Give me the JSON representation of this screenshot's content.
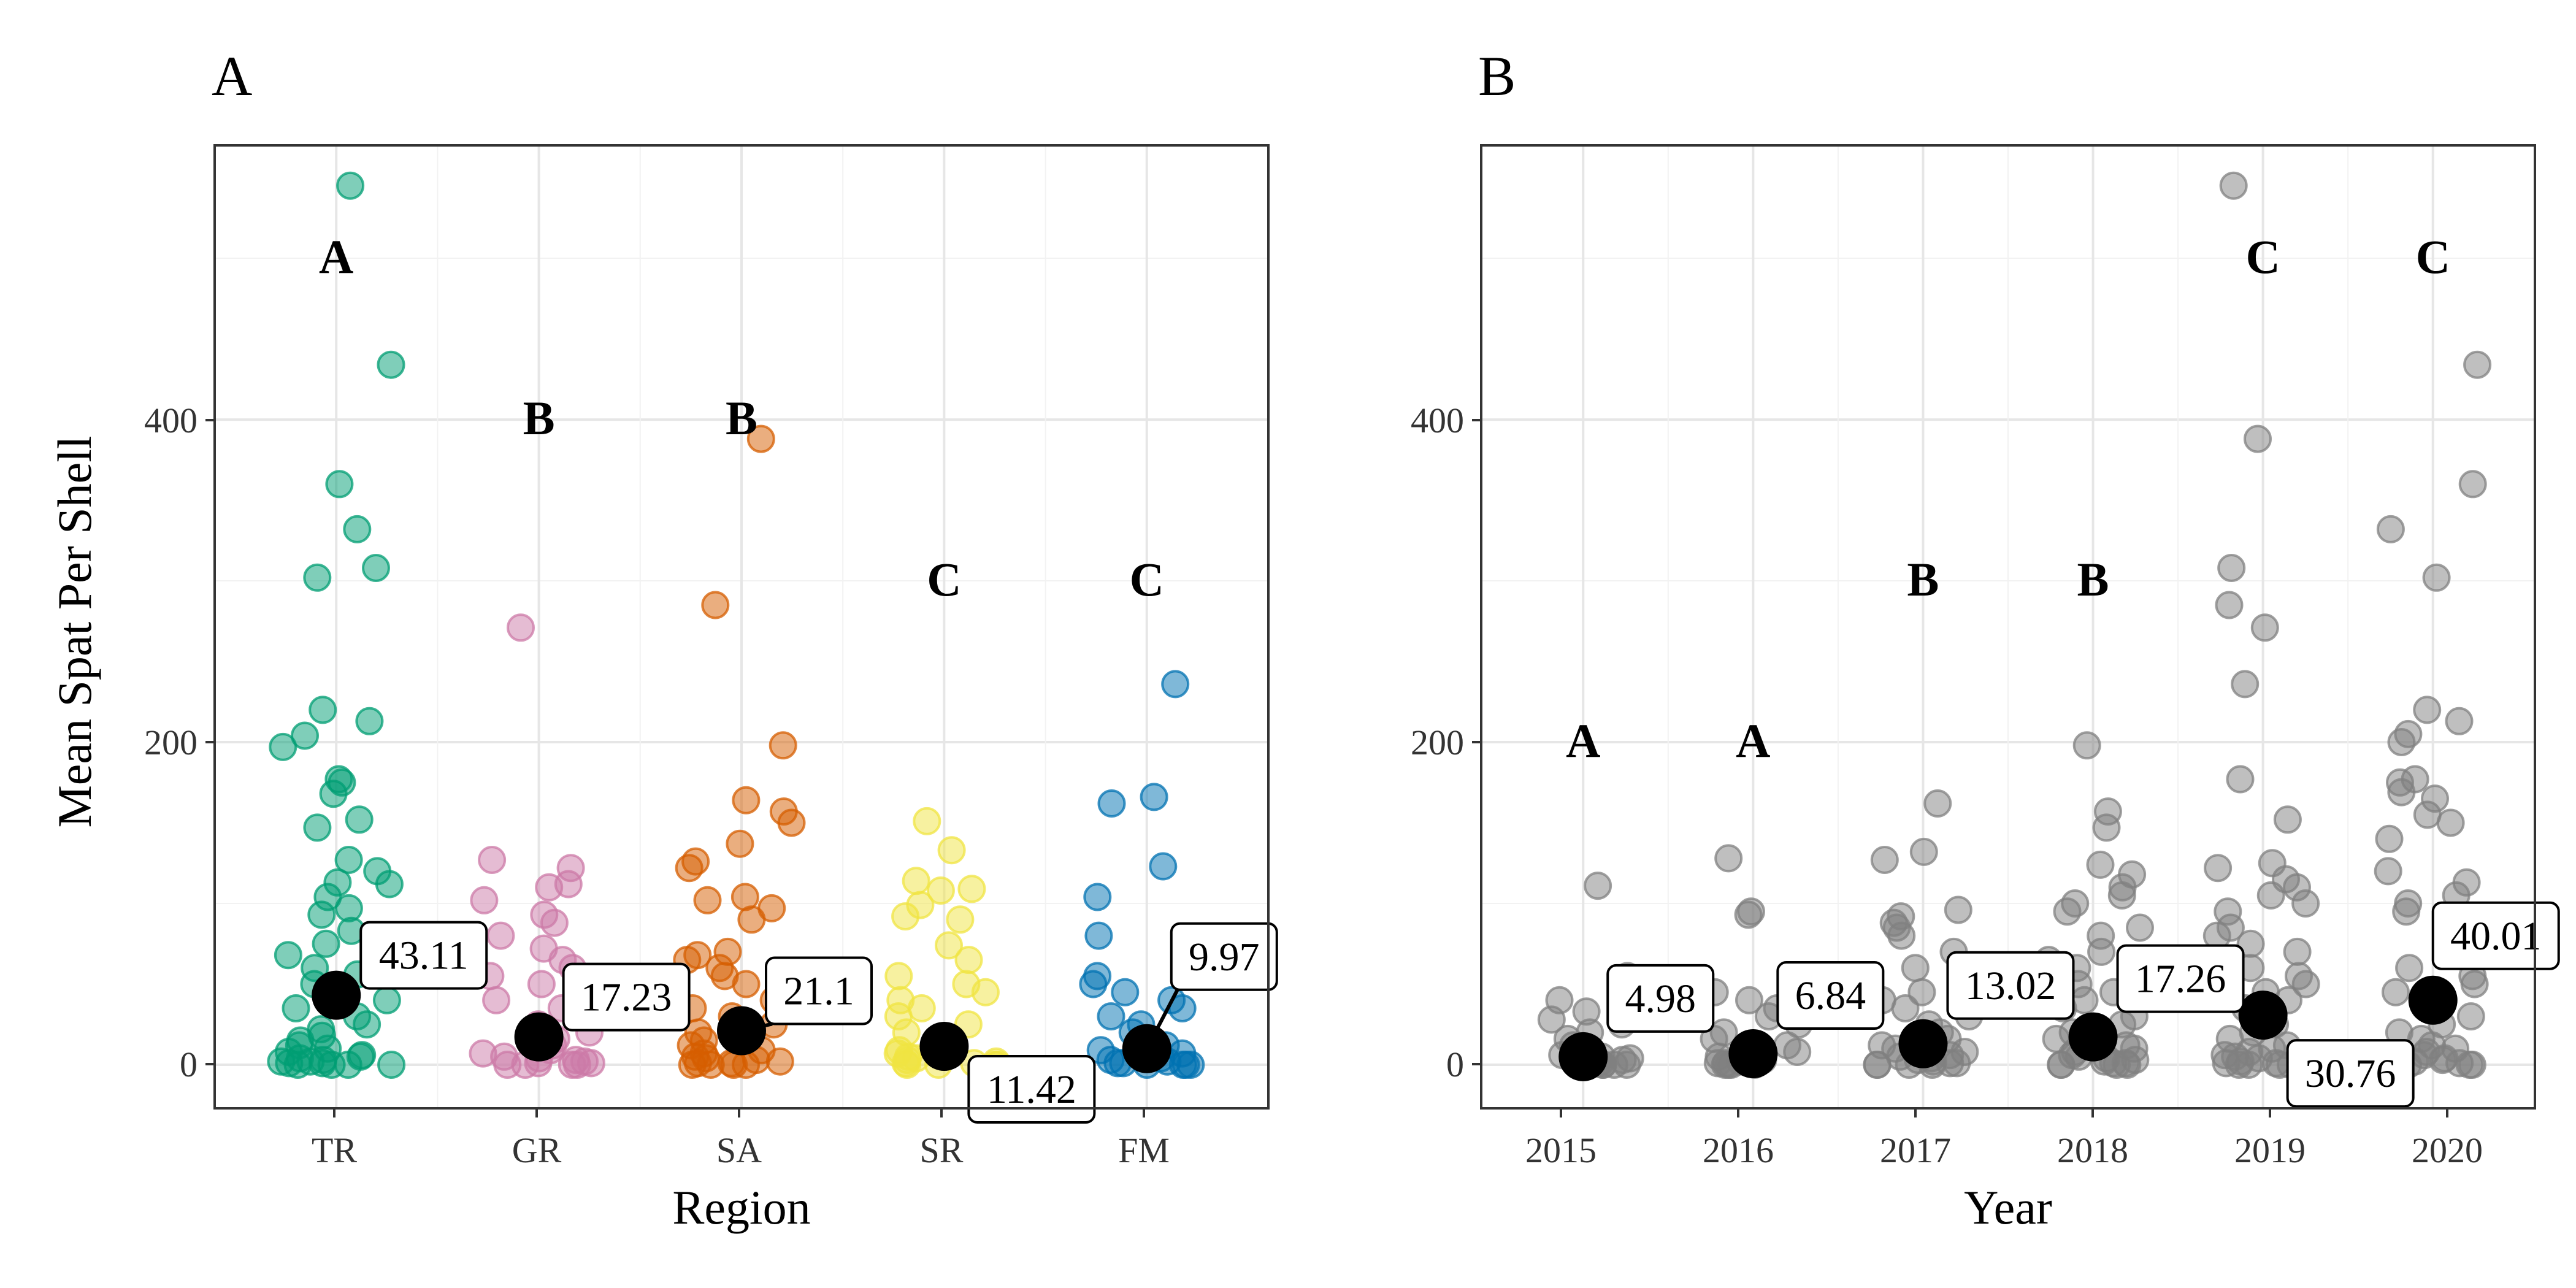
{
  "ylabel": "Mean Spat Per Shell",
  "panels": {
    "a": {
      "tag": "A",
      "xlabel": "Region",
      "yticks": [
        "0",
        "200",
        "400"
      ],
      "xticks": [
        "TR",
        "GR",
        "SA",
        "SR",
        "FM"
      ]
    },
    "b": {
      "tag": "B",
      "xlabel": "Year",
      "yticks": [
        "0",
        "200",
        "400"
      ],
      "xticks": [
        "2015",
        "2016",
        "2017",
        "2018",
        "2019",
        "2020"
      ]
    }
  },
  "chart_data": [
    {
      "type": "scatter",
      "panel": "A",
      "xlabel": "Region",
      "ylabel": "Mean Spat Per Shell",
      "categories": [
        "TR",
        "GR",
        "SA",
        "SR",
        "FM"
      ],
      "ylim": [
        -27,
        570
      ],
      "grid": true,
      "colors": [
        "#009E73",
        "#CC79A7",
        "#D55E00",
        "#F0E442",
        "#0072B2"
      ],
      "means": [
        43.11,
        17.23,
        21.1,
        11.42,
        9.97
      ],
      "mean_labels": [
        "43.11",
        "17.23",
        "21.1",
        "11.42",
        "9.97"
      ],
      "letters": [
        "A",
        "B",
        "B",
        "C",
        "C"
      ],
      "letter_y": [
        500,
        400,
        400,
        300,
        300
      ],
      "series": [
        {
          "category": "TR",
          "values": [
            545,
            434,
            360,
            332,
            308,
            302,
            220,
            213,
            204,
            197,
            177,
            175,
            168,
            152,
            147,
            127,
            120,
            113,
            112,
            104,
            97,
            93,
            83,
            80,
            75,
            68,
            60,
            56,
            50,
            45,
            40,
            35,
            30,
            25,
            22,
            18,
            15,
            12,
            10,
            8,
            6,
            5,
            4,
            3,
            2,
            2,
            1,
            1,
            0,
            0,
            0,
            0
          ]
        },
        {
          "category": "GR",
          "values": [
            271,
            127,
            122,
            112,
            110,
            102,
            93,
            88,
            80,
            72,
            65,
            60,
            55,
            50,
            45,
            40,
            35,
            30,
            25,
            20,
            16,
            12,
            9,
            7,
            5,
            4,
            3,
            2,
            1,
            1,
            0,
            0,
            0,
            0
          ]
        },
        {
          "category": "SA",
          "values": [
            388,
            285,
            198,
            164,
            157,
            150,
            137,
            126,
            122,
            104,
            102,
            97,
            90,
            70,
            68,
            65,
            60,
            55,
            50,
            45,
            40,
            35,
            30,
            25,
            20,
            15,
            12,
            9,
            7,
            5,
            4,
            3,
            2,
            1,
            1,
            0,
            0,
            0,
            0
          ]
        },
        {
          "category": "SR",
          "values": [
            151,
            133,
            114,
            109,
            108,
            99,
            92,
            90,
            74,
            65,
            55,
            50,
            45,
            40,
            35,
            30,
            25,
            20,
            16,
            12,
            9,
            7,
            5,
            4,
            3,
            2,
            1,
            1,
            0,
            0,
            0,
            0
          ]
        },
        {
          "category": "FM",
          "values": [
            236,
            166,
            162,
            123,
            104,
            80,
            55,
            50,
            45,
            40,
            35,
            30,
            25,
            20,
            16,
            12,
            9,
            7,
            5,
            4,
            3,
            2,
            1,
            1,
            0,
            0,
            0,
            0
          ]
        }
      ]
    },
    {
      "type": "scatter",
      "panel": "B",
      "xlabel": "Year",
      "ylabel": "Mean Spat Per Shell",
      "categories": [
        "2015",
        "2016",
        "2017",
        "2018",
        "2019",
        "2020"
      ],
      "ylim": [
        -27,
        570
      ],
      "grid": true,
      "colors": [
        "#808080",
        "#808080",
        "#808080",
        "#808080",
        "#808080",
        "#808080"
      ],
      "means": [
        4.98,
        6.84,
        13.02,
        17.26,
        30.76,
        40.01
      ],
      "mean_labels": [
        "4.98",
        "6.84",
        "13.02",
        "17.26",
        "30.76",
        "40.01"
      ],
      "letters": [
        "A",
        "A",
        "B",
        "B",
        "C",
        "C"
      ],
      "letter_y": [
        200,
        200,
        300,
        300,
        500,
        500
      ],
      "series": [
        {
          "category": "2015",
          "values": [
            111,
            55,
            40,
            33,
            28,
            25,
            20,
            16,
            12,
            10,
            8,
            6,
            5,
            4,
            3,
            2,
            1,
            1,
            0,
            0,
            0,
            0
          ]
        },
        {
          "category": "2016",
          "values": [
            128,
            95,
            93,
            45,
            40,
            35,
            30,
            25,
            20,
            16,
            12,
            10,
            8,
            6,
            5,
            4,
            3,
            2,
            1,
            1,
            0,
            0,
            0,
            0
          ]
        },
        {
          "category": "2017",
          "values": [
            162,
            132,
            127,
            96,
            92,
            88,
            85,
            80,
            70,
            60,
            50,
            45,
            40,
            35,
            30,
            25,
            20,
            16,
            12,
            10,
            8,
            6,
            5,
            4,
            3,
            2,
            1,
            1,
            0,
            0,
            0,
            0
          ]
        },
        {
          "category": "2018",
          "values": [
            198,
            157,
            147,
            124,
            118,
            110,
            105,
            100,
            95,
            85,
            80,
            70,
            65,
            60,
            55,
            50,
            45,
            40,
            35,
            30,
            25,
            20,
            16,
            12,
            10,
            8,
            6,
            5,
            4,
            3,
            2,
            1,
            1,
            0,
            0,
            0,
            0
          ]
        },
        {
          "category": "2019",
          "values": [
            545,
            388,
            308,
            285,
            271,
            236,
            177,
            152,
            125,
            122,
            115,
            110,
            105,
            100,
            95,
            85,
            80,
            75,
            70,
            65,
            60,
            55,
            50,
            45,
            40,
            35,
            30,
            25,
            20,
            16,
            12,
            10,
            8,
            6,
            5,
            4,
            3,
            2,
            1,
            1,
            0,
            0,
            0,
            0
          ]
        },
        {
          "category": "2020",
          "values": [
            434,
            360,
            332,
            302,
            220,
            213,
            205,
            200,
            177,
            175,
            169,
            165,
            155,
            150,
            140,
            120,
            113,
            105,
            100,
            95,
            90,
            80,
            70,
            60,
            55,
            50,
            45,
            40,
            35,
            30,
            25,
            20,
            16,
            12,
            10,
            8,
            6,
            5,
            4,
            3,
            2,
            1,
            1,
            0,
            0,
            0,
            0
          ]
        }
      ]
    }
  ]
}
